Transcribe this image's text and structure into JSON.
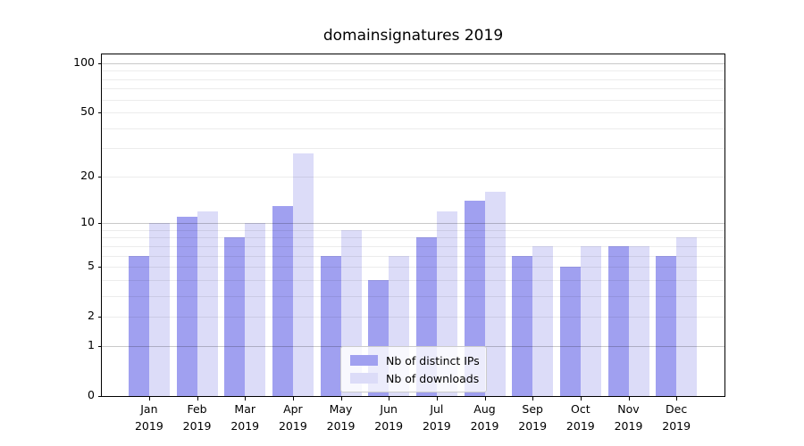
{
  "title": "domainsignatures 2019",
  "legend": {
    "items": [
      {
        "label": "Nb of distinct IPs",
        "color": "#a0a0f0"
      },
      {
        "label": "Nb of downloads",
        "color": "#dcdcf8"
      }
    ]
  },
  "chart_data": {
    "type": "bar",
    "title": "domainsignatures 2019",
    "categories": [
      "Jan",
      "Feb",
      "Mar",
      "Apr",
      "May",
      "Jun",
      "Jul",
      "Aug",
      "Sep",
      "Oct",
      "Nov",
      "Dec"
    ],
    "category_year": "2019",
    "series": [
      {
        "name": "Nb of distinct IPs",
        "color": "#a0a0f0",
        "values": [
          6,
          11,
          8,
          13,
          6,
          4,
          8,
          14,
          6,
          5,
          7,
          6
        ]
      },
      {
        "name": "Nb of downloads",
        "color": "#dcdcf8",
        "values": [
          10,
          12,
          10,
          28,
          9,
          6,
          12,
          16,
          7,
          7,
          7,
          8
        ]
      }
    ],
    "yscale": "log1p",
    "ylim": [
      0,
      113
    ],
    "yticks": [
      0,
      1,
      2,
      5,
      10,
      20,
      50,
      100
    ],
    "major_gridlines": [
      1,
      10,
      100
    ],
    "minor_gridlines": [
      2,
      3,
      4,
      5,
      6,
      7,
      8,
      9,
      20,
      30,
      40,
      50,
      60,
      70,
      80,
      90
    ],
    "grid": true,
    "legend_position": "lower center"
  }
}
